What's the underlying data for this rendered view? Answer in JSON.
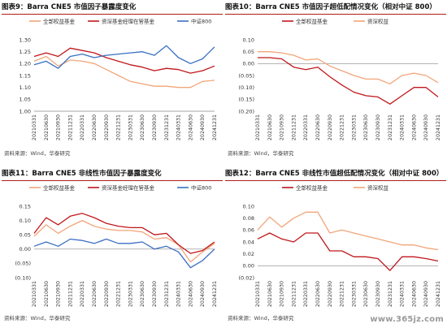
{
  "dates": [
    "20210331",
    "20210630",
    "20210930",
    "20211231",
    "20220331",
    "20220630",
    "20220930",
    "20221231",
    "20230331",
    "20230630",
    "20230930",
    "20231231",
    "20240331",
    "20240630",
    "20240930",
    "20241231"
  ],
  "source_text": "资料来源：Wind，华泰研究",
  "watermark": "www.365jz.com",
  "colors": {
    "red": "#c0171b",
    "orange": "#f2a57a",
    "blue": "#3a6fc3",
    "accent": "#b01c1c"
  },
  "panels": [
    {
      "fig_label": "图表9：",
      "title": "Barra CNE5 市值因子暴露度变化",
      "chart_data": {
        "type": "line",
        "ylim": [
          1.0,
          1.3
        ],
        "yticks": [
          1.0,
          1.05,
          1.1,
          1.15,
          1.2,
          1.25,
          1.3
        ],
        "ydecimals": 2,
        "paren_neg": false,
        "legend_position": "top",
        "series": [
          {
            "name": "全部权益基金",
            "color": "#f2a57a",
            "values": [
              1.21,
              1.23,
              1.19,
              1.215,
              1.21,
              1.2,
              1.175,
              1.15,
              1.125,
              1.115,
              1.105,
              1.105,
              1.1,
              1.1,
              1.125,
              1.13
            ]
          },
          {
            "name": "资深基金经理在管基金",
            "color": "#c0171b",
            "values": [
              1.23,
              1.245,
              1.23,
              1.265,
              1.255,
              1.245,
              1.225,
              1.21,
              1.195,
              1.185,
              1.17,
              1.18,
              1.175,
              1.16,
              1.17,
              1.19
            ]
          },
          {
            "name": "中证800",
            "color": "#3a6fc3",
            "values": [
              1.195,
              1.21,
              1.18,
              1.23,
              1.24,
              1.225,
              1.235,
              1.24,
              1.245,
              1.25,
              1.235,
              1.275,
              1.225,
              1.2,
              1.22,
              1.27
            ]
          }
        ]
      }
    },
    {
      "fig_label": "图表10：",
      "title": "Barra CNE5 市值因子超低配情况变化（相对中证 800）",
      "chart_data": {
        "type": "line",
        "ylim": [
          -0.2,
          0.1
        ],
        "yticks": [
          0.1,
          0.05,
          0.0,
          -0.05,
          -0.1,
          -0.15,
          -0.2
        ],
        "ydecimals": 2,
        "paren_neg": true,
        "legend_position": "top",
        "series": [
          {
            "name": "全部权益基金",
            "color": "#c0171b",
            "values": [
              0.025,
              0.025,
              0.02,
              -0.015,
              -0.025,
              -0.015,
              -0.055,
              -0.09,
              -0.12,
              -0.135,
              -0.14,
              -0.17,
              -0.135,
              -0.1,
              -0.1,
              -0.14
            ]
          },
          {
            "name": "资深权益",
            "color": "#f2a57a",
            "values": [
              0.05,
              0.05,
              0.045,
              0.035,
              0.015,
              0.02,
              -0.01,
              -0.03,
              -0.05,
              -0.065,
              -0.065,
              -0.085,
              -0.05,
              -0.04,
              -0.05,
              -0.08
            ]
          }
        ]
      }
    },
    {
      "fig_label": "图表11：",
      "title": "Barra CNE5 非线性市值因子暴露度变化",
      "chart_data": {
        "type": "line",
        "ylim": [
          -0.1,
          0.15
        ],
        "yticks": [
          0.15,
          0.1,
          0.05,
          0.0,
          -0.05,
          -0.1
        ],
        "ydecimals": 2,
        "paren_neg": true,
        "legend_position": "top",
        "series": [
          {
            "name": "全部权益基金",
            "color": "#f2a57a",
            "values": [
              0.045,
              0.085,
              0.055,
              0.08,
              0.1,
              0.08,
              0.07,
              0.065,
              0.065,
              0.06,
              0.035,
              0.04,
              0.015,
              -0.045,
              -0.01,
              0.02
            ]
          },
          {
            "name": "资深基金经理在管基金",
            "color": "#c0171b",
            "values": [
              0.055,
              0.11,
              0.085,
              0.115,
              0.125,
              0.11,
              0.09,
              0.08,
              0.075,
              0.075,
              0.05,
              0.055,
              0.015,
              -0.015,
              -0.005,
              0.025
            ]
          },
          {
            "name": "中证800",
            "color": "#3a6fc3",
            "values": [
              0.01,
              0.025,
              0.01,
              0.035,
              0.03,
              0.02,
              0.035,
              0.02,
              0.02,
              0.025,
              0.0,
              0.01,
              -0.01,
              -0.065,
              -0.04,
              0.0
            ]
          }
        ]
      }
    },
    {
      "fig_label": "图表12：",
      "title": "Barra CNE5 非线性市值超低配情况变化（相对中证 800）",
      "chart_data": {
        "type": "line",
        "ylim": [
          -0.02,
          0.1
        ],
        "yticks": [
          0.1,
          0.08,
          0.06,
          0.04,
          0.02,
          0.0,
          -0.02
        ],
        "ydecimals": 2,
        "paren_neg": true,
        "legend_position": "top",
        "series": [
          {
            "name": "全部权益基金",
            "color": "#c0171b",
            "values": [
              0.045,
              0.055,
              0.045,
              0.04,
              0.055,
              0.055,
              0.025,
              0.025,
              0.015,
              0.015,
              0.012,
              -0.008,
              0.015,
              0.015,
              0.012,
              0.008
            ]
          },
          {
            "name": "资深权益",
            "color": "#f2a57a",
            "values": [
              0.06,
              0.082,
              0.065,
              0.08,
              0.09,
              0.09,
              0.055,
              0.06,
              0.055,
              0.05,
              0.045,
              0.04,
              0.035,
              0.035,
              0.03,
              0.027
            ]
          }
        ]
      }
    }
  ]
}
